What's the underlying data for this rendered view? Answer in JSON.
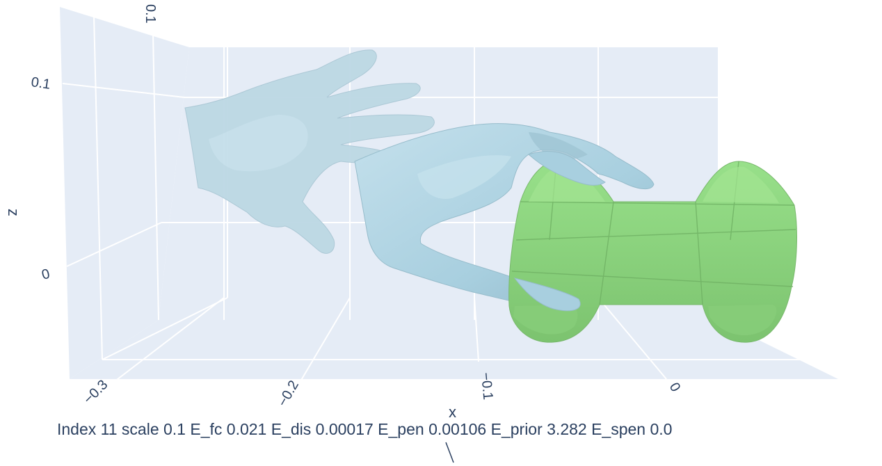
{
  "chart_data": {
    "type": "3d-mesh",
    "x_axis": {
      "title": "x",
      "ticks": [
        "−0.3",
        "−0.2",
        "−0.1",
        "0"
      ]
    },
    "y_axis": {
      "title": "",
      "ticks": []
    },
    "z_axis": {
      "title": "z",
      "ticks": [
        "0.1",
        "0",
        "0.1"
      ]
    },
    "series": [
      {
        "name": "",
        "kind": "hand-mesh-initial",
        "color": "#b9d8e6",
        "opacity": 0.85
      },
      {
        "name": "",
        "kind": "hand-mesh-final",
        "color": "#add8e6",
        "opacity": 1.0
      },
      {
        "name": "",
        "kind": "object-mesh",
        "color": "#90ee90",
        "opacity": 1.0
      }
    ],
    "grid": true,
    "background": "#e5ecf6",
    "caption": "Index 11  scale 0.1  E_fc 0.021  E_dis 0.00017  E_pen 0.00106  E_prior 3.282  E_spen 0.0"
  }
}
